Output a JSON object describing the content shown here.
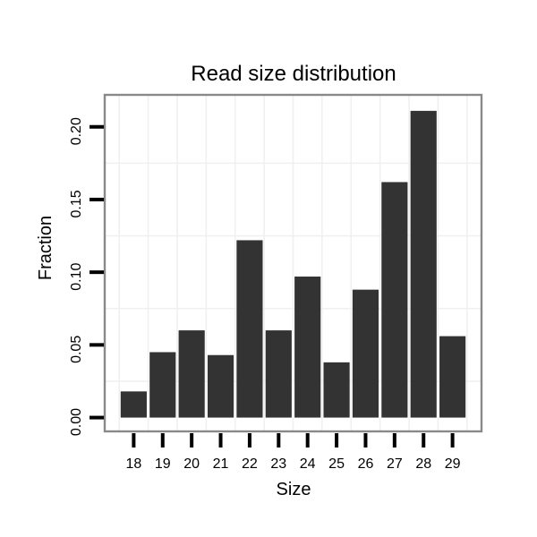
{
  "chart_data": {
    "type": "bar",
    "title": "Read size distribution",
    "xlabel": "Size",
    "ylabel": "Fraction",
    "categories": [
      18,
      19,
      20,
      21,
      22,
      23,
      24,
      25,
      26,
      27,
      28,
      29
    ],
    "values": [
      0.018,
      0.045,
      0.06,
      0.043,
      0.122,
      0.06,
      0.097,
      0.038,
      0.088,
      0.162,
      0.211,
      0.056
    ],
    "x_tick_labels": [
      "18",
      "19",
      "20",
      "21",
      "22",
      "23",
      "24",
      "25",
      "26",
      "27",
      "28",
      "29"
    ],
    "y_ticks": [
      0,
      0.05,
      0.1,
      0.15,
      0.2
    ],
    "y_tick_labels": [
      "0.00",
      "0.05",
      "0.10",
      "0.15",
      "0.20"
    ],
    "x_minor_gridlines": [
      17.5,
      18.5,
      19.5,
      20.5,
      21.5,
      22.5,
      23.5,
      24.5,
      25.5,
      26.5,
      27.5,
      28.5,
      29.5
    ],
    "y_minor_gridlines": [
      0.025,
      0.075,
      0.125,
      0.175
    ],
    "xlim": [
      17,
      30
    ],
    "ylim": [
      -0.0095,
      0.222
    ],
    "bar_width_units": 0.9,
    "grid": "minor gridlines only, very light, no legend",
    "legend": "none",
    "colors": {
      "bar_fill": "#333333",
      "panel_border": "#898989",
      "gridline": "#f0f0f0",
      "tick": "#000000",
      "text": "#000000",
      "background": "#ffffff"
    }
  }
}
